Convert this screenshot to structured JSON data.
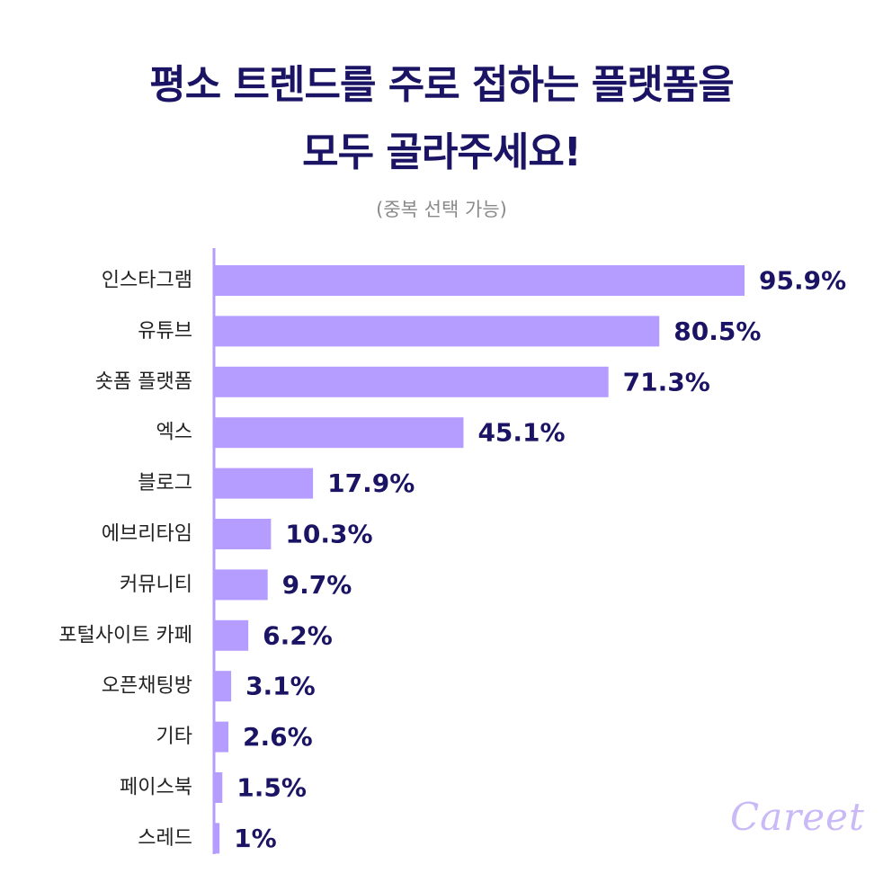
{
  "header": {
    "title_line1": "평소 트렌드를 주로 접하는 플랫폼을",
    "title_line2": "모두 골라주세요!",
    "subtitle": "(중복 선택 가능)"
  },
  "brand": {
    "watermark": "Careet"
  },
  "colors": {
    "bar": "#b59cff",
    "value_text": "#1b1464",
    "label_text": "#222222",
    "axis": "#b59cff"
  },
  "chart_data": {
    "type": "bar",
    "orientation": "horizontal",
    "title": "평소 트렌드를 주로 접하는 플랫폼을 모두 골라주세요!",
    "subtitle": "(중복 선택 가능)",
    "categories": [
      "인스타그램",
      "유튜브",
      "숏폼 플랫폼",
      "엑스",
      "블로그",
      "에브리타임",
      "커뮤니티",
      "포털사이트 카페",
      "오픈채팅방",
      "기타",
      "페이스북",
      "스레드"
    ],
    "values": [
      95.9,
      80.5,
      71.3,
      45.1,
      17.9,
      10.3,
      9.7,
      6.2,
      3.1,
      2.6,
      1.5,
      1
    ],
    "value_labels": [
      "95.9%",
      "80.5%",
      "71.3%",
      "45.1%",
      "17.9%",
      "10.3%",
      "9.7%",
      "6.2%",
      "3.1%",
      "2.6%",
      "1.5%",
      "1%"
    ],
    "unit": "%",
    "xlim": [
      0,
      100
    ],
    "grid": false,
    "legend": "none"
  }
}
